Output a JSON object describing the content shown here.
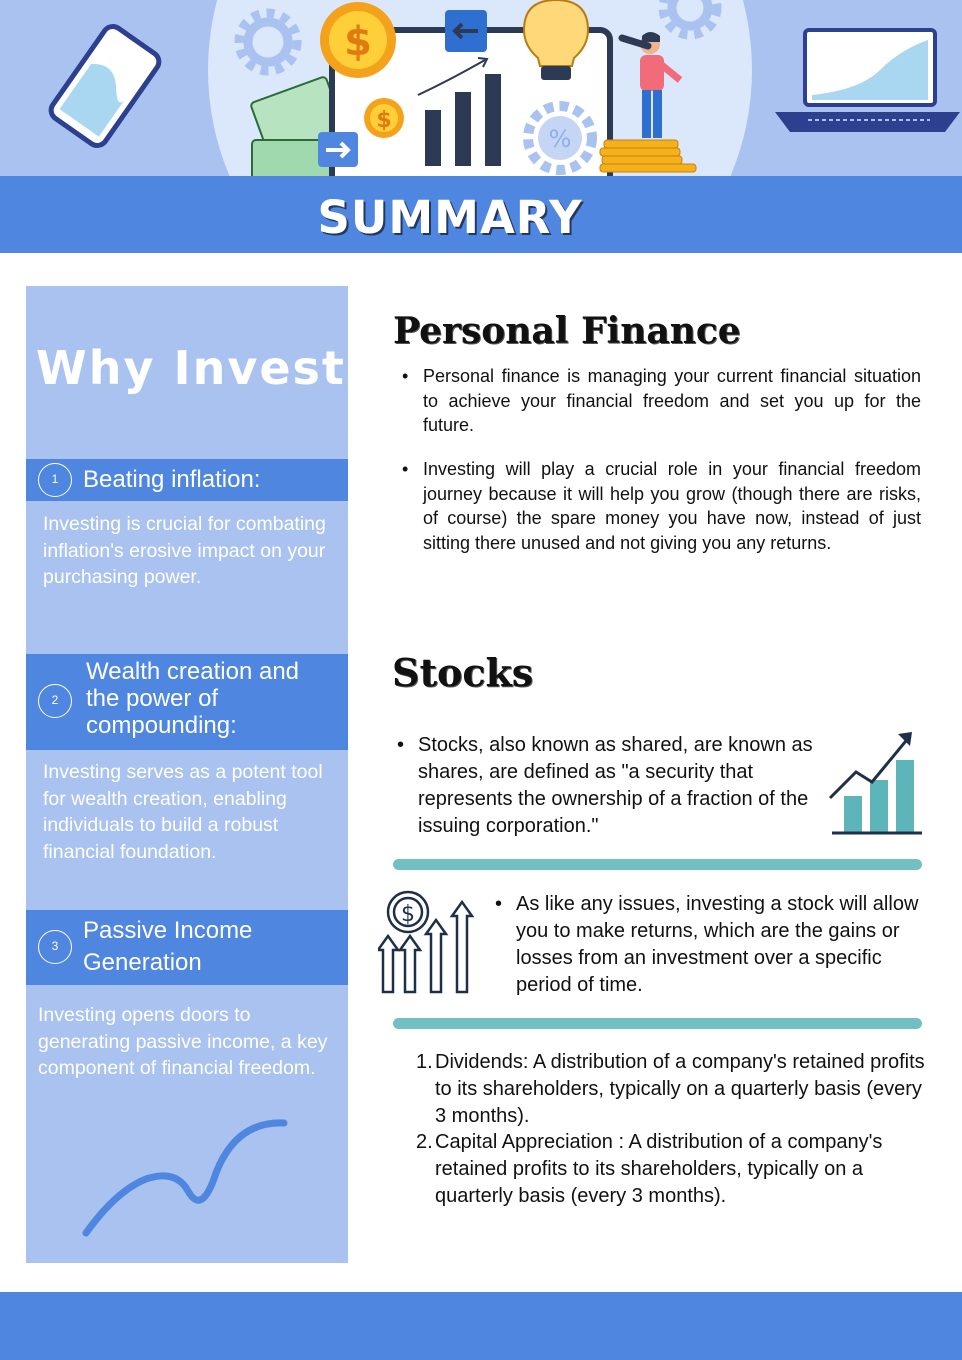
{
  "header": {
    "title": "SUMMARY"
  },
  "sidebar": {
    "heading": "Why Invest?",
    "items": [
      {
        "number": "1",
        "title": "Beating inflation:",
        "body": "Investing is crucial for combating inflation's erosive impact on your purchasing power."
      },
      {
        "number": "2",
        "title": "Wealth creation and the power of compounding:",
        "body": "Investing serves as a potent tool for wealth creation, enabling individuals to build a robust financial foundation."
      },
      {
        "number": "3",
        "title": "Passive Income Generation",
        "body": "Investing opens doors to generating passive income, a key component of financial freedom."
      }
    ]
  },
  "personal_finance": {
    "heading": "Personal Finance",
    "bullets": [
      "Personal finance is managing your current financial situation to achieve your financial freedom and set you up for the future.",
      "Investing will play a crucial role in your financial freedom journey because it will help you grow (though there are risks, of course) the spare money you have now, instead of just sitting there unused and not giving you any returns."
    ]
  },
  "stocks": {
    "heading": "Stocks",
    "bullet_1": "Stocks, also known as shared, are known as shares, are defined as \"a security that represents the ownership of a fraction of the issuing corporation.\"",
    "bullet_2": "As like any issues, investing a stock will allow you to make returns, which are the gains or losses from an investment over a specific period of time.",
    "list": [
      {
        "num": "1.",
        "text": "Dividends: A distribution of a company's retained profits to its shareholders, typically on a quarterly basis (every 3 months)."
      },
      {
        "num": "2.",
        "text": "Capital Appreciation : A distribution of a company's retained profits to its shareholders, typically on a quarterly basis (every 3 months)."
      }
    ]
  },
  "bullet_char": "•",
  "colors": {
    "primary_blue": "#4f86e0",
    "light_blue": "#a9c2ef",
    "teal": "#72bfc4",
    "navy": "#23385f"
  },
  "icons": [
    "gear-icon",
    "dollar-coin-icon",
    "phone-icon",
    "laptop-icon",
    "lightbulb-icon",
    "bar-chart-icon",
    "percent-gear-icon",
    "person-telescope-icon",
    "growth-chart-icon",
    "dollar-arrows-icon",
    "trend-line-icon"
  ]
}
